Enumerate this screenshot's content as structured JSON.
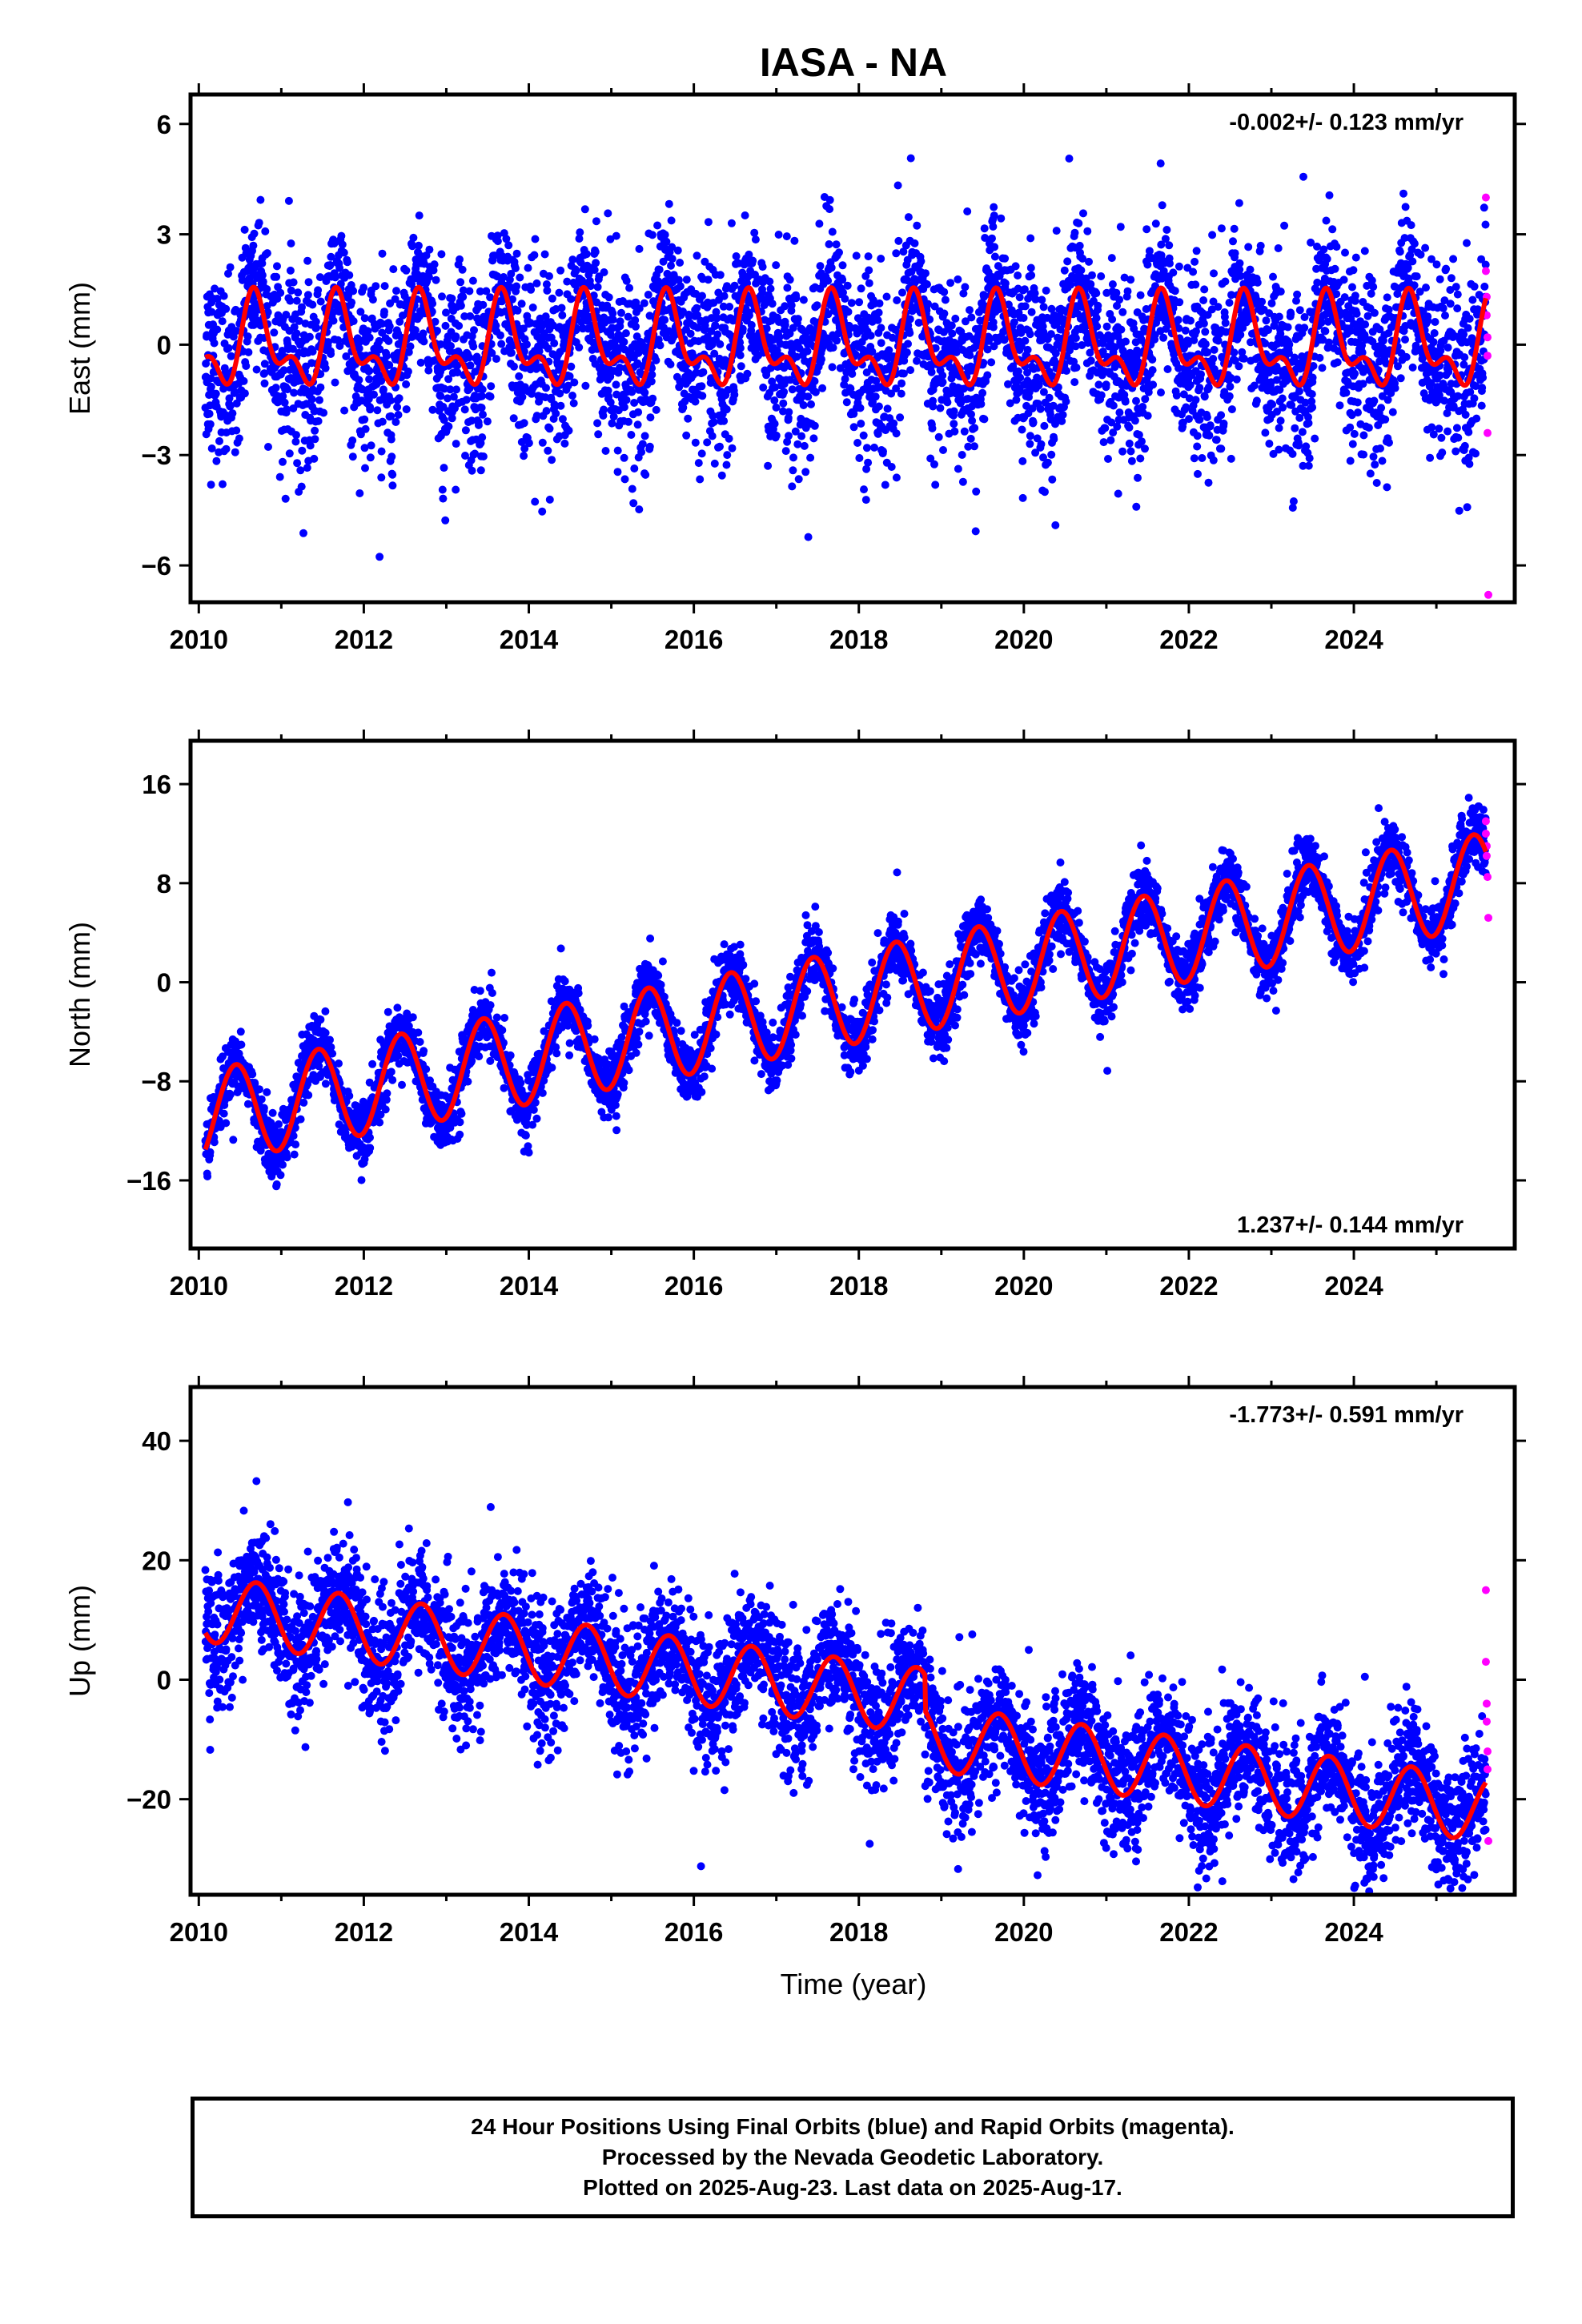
{
  "title": "IASA - NA",
  "xlabel": "Time (year)",
  "caption": [
    "24 Hour Positions Using Final Orbits (blue) and Rapid Orbits (magenta).",
    "Processed by the Nevada Geodetic Laboratory.",
    "Plotted on 2025-Aug-23. Last data on 2025-Aug-17."
  ],
  "colors": {
    "final": "#0000ff",
    "rapid": "#ff00ff",
    "model": "#ff0000"
  },
  "chart_data": [
    {
      "type": "scatter",
      "ylabel": "East (mm)",
      "rate": "-0.002+/- 0.123 mm/yr",
      "rate_position": "top-right",
      "xlim": [
        2009.9,
        2025.95
      ],
      "ylim": [
        -7,
        6.8
      ],
      "x_ticks": [
        2010,
        2012,
        2014,
        2016,
        2018,
        2020,
        2022,
        2024
      ],
      "y_ticks": [
        -6,
        -3,
        0,
        3,
        6
      ],
      "model": {
        "trend": -0.002,
        "offset_at_2010": 0.0,
        "annual_amp": 1.0,
        "annual_phase_peak": 0.7,
        "semiannual_amp": 0.6,
        "scatter_sd": 1.1
      },
      "series": [
        {
          "values": [],
          "rapid_orbit_points": [
            [
              2025.6,
              4.0
            ],
            [
              2025.6,
              2.0
            ],
            [
              2025.61,
              1.3
            ],
            [
              2025.61,
              0.8
            ],
            [
              2025.62,
              0.2
            ],
            [
              2025.62,
              -0.3
            ],
            [
              2025.62,
              -2.4
            ],
            [
              2025.63,
              -6.8
            ]
          ]
        }
      ]
    },
    {
      "type": "scatter",
      "ylabel": "North (mm)",
      "rate": "1.237+/- 0.144 mm/yr",
      "rate_position": "bottom-right",
      "xlim": [
        2009.9,
        2025.95
      ],
      "ylim": [
        -21.5,
        19.5
      ],
      "x_ticks": [
        2010,
        2012,
        2014,
        2016,
        2018,
        2020,
        2022,
        2024
      ],
      "y_ticks": [
        -16,
        -8,
        0,
        8,
        16
      ],
      "model": {
        "trend": 1.237,
        "offset_at_2010": -11.0,
        "annual_amp": 3.8,
        "annual_phase_peak": 0.45,
        "semiannual_amp": 0.0,
        "scatter_sd": 1.2
      },
      "series": [
        {
          "values": [],
          "rapid_orbit_points": [
            [
              2025.6,
              13.0
            ],
            [
              2025.6,
              12.0
            ],
            [
              2025.61,
              11.0
            ],
            [
              2025.61,
              10.2
            ],
            [
              2025.62,
              8.5
            ],
            [
              2025.63,
              5.2
            ]
          ]
        }
      ]
    },
    {
      "type": "scatter",
      "ylabel": "Up (mm)",
      "rate": "-1.773+/- 0.591 mm/yr",
      "rate_position": "top-right",
      "xlim": [
        2009.9,
        2025.95
      ],
      "ylim": [
        -36,
        49
      ],
      "x_ticks": [
        2010,
        2012,
        2014,
        2016,
        2018,
        2020,
        2022,
        2024
      ],
      "y_ticks": [
        -20,
        0,
        20,
        40
      ],
      "model": {
        "trend": -1.773,
        "offset_at_2010": 12.0,
        "annual_amp": 5.5,
        "annual_phase_peak": 0.7,
        "semiannual_amp": 0.0,
        "step_2018_8": -6.0,
        "scatter_sd": 5.0
      },
      "series": [
        {
          "values": [],
          "rapid_orbit_points": [
            [
              2025.6,
              15.0
            ],
            [
              2025.6,
              3.0
            ],
            [
              2025.61,
              -4.0
            ],
            [
              2025.61,
              -7.0
            ],
            [
              2025.62,
              -12.0
            ],
            [
              2025.62,
              -15.0
            ],
            [
              2025.63,
              -27.0
            ]
          ]
        }
      ]
    }
  ]
}
